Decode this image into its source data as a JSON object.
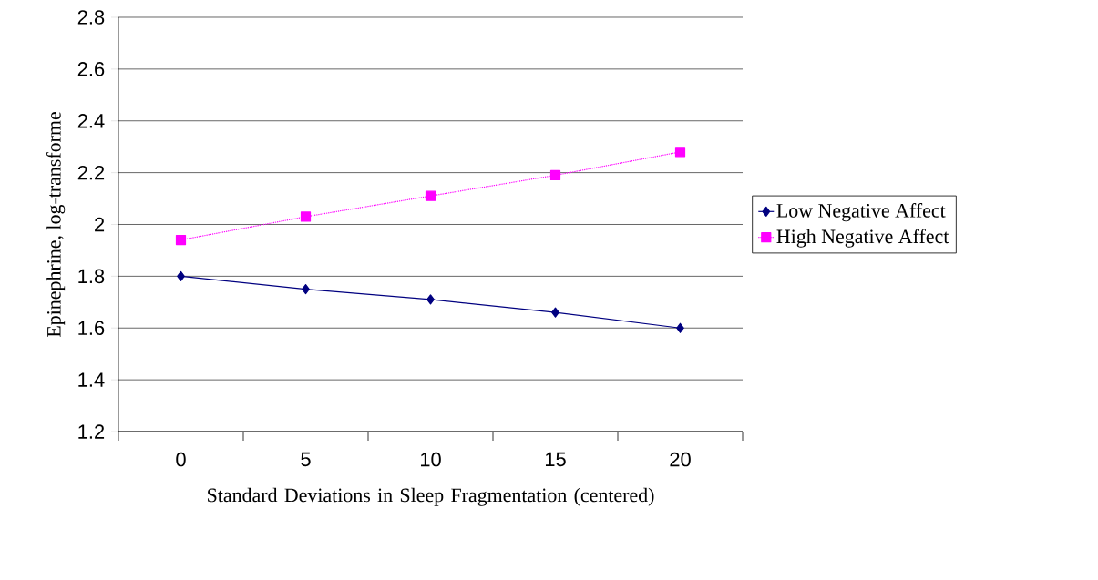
{
  "chart_data": {
    "type": "line",
    "xlabel": "Standard Deviations in Sleep Fragmentation (centered)",
    "ylabel": "Epinephrine, log-transforme",
    "categories": [
      "0",
      "5",
      "10",
      "15",
      "20"
    ],
    "series": [
      {
        "name": "Low Negative Affect",
        "color": "#000080",
        "marker": "diamond",
        "line_style": "solid",
        "values": [
          1.8,
          1.75,
          1.71,
          1.66,
          1.6
        ]
      },
      {
        "name": "High Negative Affect",
        "color": "#ff00ff",
        "marker": "square",
        "line_style": "dotted",
        "values": [
          1.94,
          2.03,
          2.11,
          2.19,
          2.28
        ]
      }
    ],
    "ylim": [
      1.2,
      2.8
    ],
    "yticks": [
      1.2,
      1.4,
      1.6,
      1.8,
      2,
      2.2,
      2.4,
      2.6,
      2.8
    ],
    "grid": "y",
    "legend": "right"
  }
}
